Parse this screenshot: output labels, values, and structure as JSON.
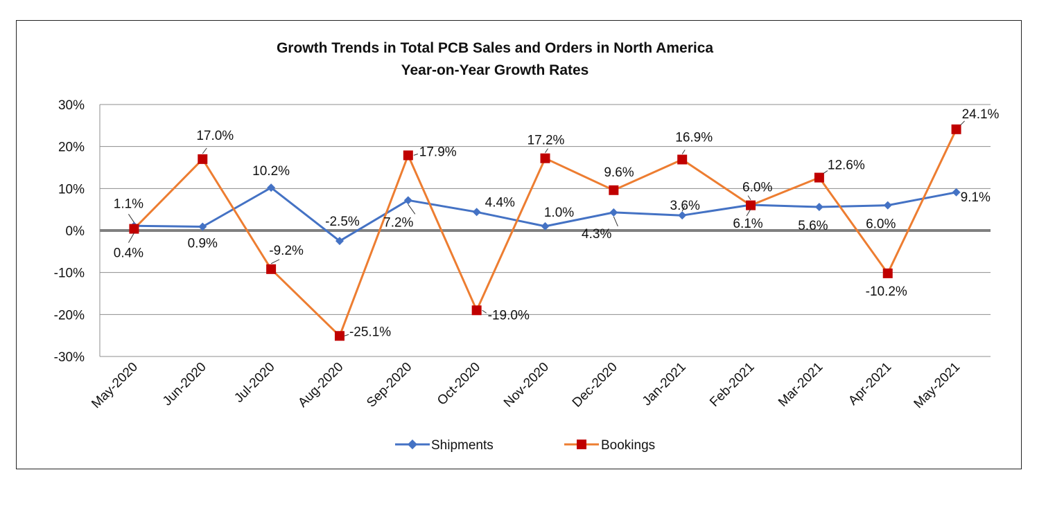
{
  "chart_data": {
    "type": "line",
    "title": "Growth Trends in Total PCB Sales and Orders in North America",
    "subtitle": "Year-on-Year Growth Rates",
    "xlabel": "",
    "ylabel": "",
    "ylim": [
      -30,
      30
    ],
    "y_ticks": [
      "-30%",
      "-20%",
      "-10%",
      "0%",
      "10%",
      "20%",
      "30%"
    ],
    "y_tick_values": [
      -30,
      -20,
      -10,
      0,
      10,
      20,
      30
    ],
    "grid": true,
    "legend_position": "bottom",
    "categories": [
      "May-2020",
      "Jun-2020",
      "Jul-2020",
      "Aug-2020",
      "Sep-2020",
      "Oct-2020",
      "Nov-2020",
      "Dec-2020",
      "Jan-2021",
      "Feb-2021",
      "Mar-2021",
      "Apr-2021",
      "May-2021"
    ],
    "series": [
      {
        "name": "Shipments",
        "color": "#4472C4",
        "marker": "diamond",
        "values": [
          1.1,
          0.9,
          10.2,
          -2.5,
          7.2,
          4.4,
          1.0,
          4.3,
          3.6,
          6.1,
          5.6,
          6.0,
          9.1
        ],
        "labels": [
          "1.1%",
          "0.9%",
          "10.2%",
          "-2.5%",
          "7.2%",
          "4.4%",
          "1.0%",
          "4.3%",
          "3.6%",
          "6.1%",
          "5.6%",
          "6.0%",
          "9.1%"
        ]
      },
      {
        "name": "Bookings",
        "color": "#ED7D31",
        "marker_color": "#C00000",
        "marker": "square",
        "values": [
          0.4,
          17.0,
          -9.2,
          -25.1,
          17.9,
          -19.0,
          17.2,
          9.6,
          16.9,
          6.0,
          12.6,
          -10.2,
          24.1
        ],
        "labels": [
          "0.4%",
          "17.0%",
          "-9.2%",
          "-25.1%",
          "17.9%",
          "-19.0%",
          "17.2%",
          "9.6%",
          "16.9%",
          "6.0%",
          "12.6%",
          "-10.2%",
          "24.1%"
        ]
      }
    ]
  }
}
